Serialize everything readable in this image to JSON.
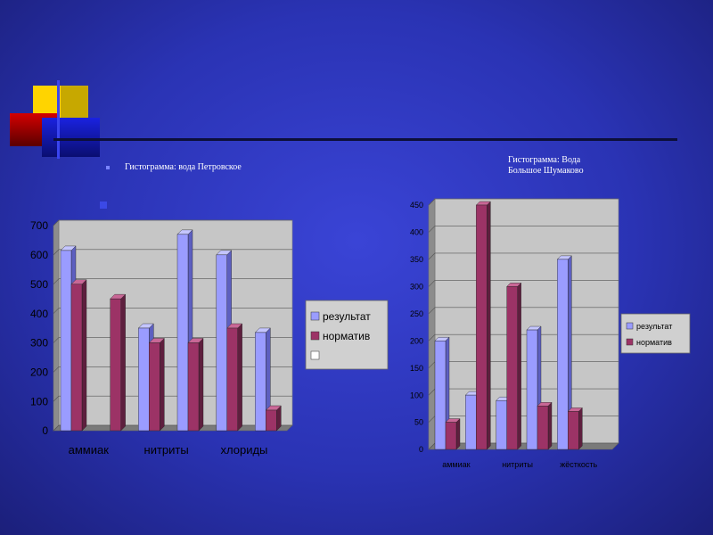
{
  "captions": {
    "left": "Гистограмма: вода Петровское",
    "right_line1": "Гистограмма:  Вода",
    "right_line2": "Большое    Шумаково"
  },
  "colors": {
    "result": "#9a9cff",
    "norm": "#9c3366",
    "plot_bg": "#c6c6c6"
  },
  "chart_data": [
    {
      "type": "bar",
      "categories": [
        "аммиак",
        "",
        "нитриты",
        "",
        "хлориды",
        ""
      ],
      "tick_labels": [
        "аммиак",
        "нитриты",
        "хлориды"
      ],
      "series": [
        {
          "name": "результат",
          "values": [
            615,
            0,
            350,
            670,
            600,
            335
          ]
        },
        {
          "name": "норматив",
          "values": [
            500,
            450,
            300,
            300,
            350,
            70
          ]
        }
      ],
      "legend_extra": "",
      "ylim": [
        0,
        700
      ],
      "yticks": [
        0,
        100,
        200,
        300,
        400,
        500,
        600,
        700
      ],
      "grid": true,
      "legend": "right"
    },
    {
      "type": "bar",
      "categories": [
        "аммиак",
        "",
        "нитриты",
        "",
        "жёсткость",
        ""
      ],
      "tick_labels": [
        "аммиак",
        "нитриты",
        "жёсткость"
      ],
      "series": [
        {
          "name": "результат",
          "values": [
            200,
            100,
            90,
            220,
            350,
            0
          ]
        },
        {
          "name": "норматив",
          "values": [
            50,
            450,
            300,
            80,
            70,
            0
          ]
        }
      ],
      "ylim": [
        0,
        450
      ],
      "yticks": [
        0,
        50,
        100,
        150,
        200,
        250,
        300,
        350,
        400,
        450
      ],
      "grid": true,
      "legend": "right"
    }
  ]
}
